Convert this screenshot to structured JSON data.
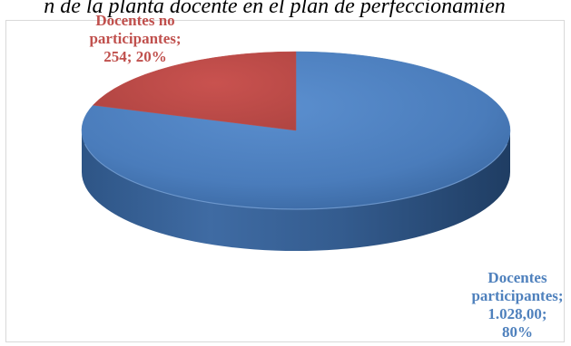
{
  "chart_data": {
    "type": "pie",
    "title": "n de la planta docente en el plan de perfeccionamien",
    "slices": [
      {
        "name": "Docentes participantes",
        "value": 1028,
        "value_label": "1.028,00",
        "percent": 80,
        "percent_label": "80%",
        "color": "#4f81bd",
        "label_lines": [
          "Docentes",
          "participantes;",
          "1.028,00;",
          "80%"
        ]
      },
      {
        "name": "Docentes no participantes",
        "value": 254,
        "value_label": "254",
        "percent": 20,
        "percent_label": "20%",
        "color": "#c0504d",
        "label_lines": [
          "Docentes no",
          "participantes;",
          "254; 20%"
        ]
      }
    ],
    "style": "3d-pie",
    "legend": "none"
  }
}
